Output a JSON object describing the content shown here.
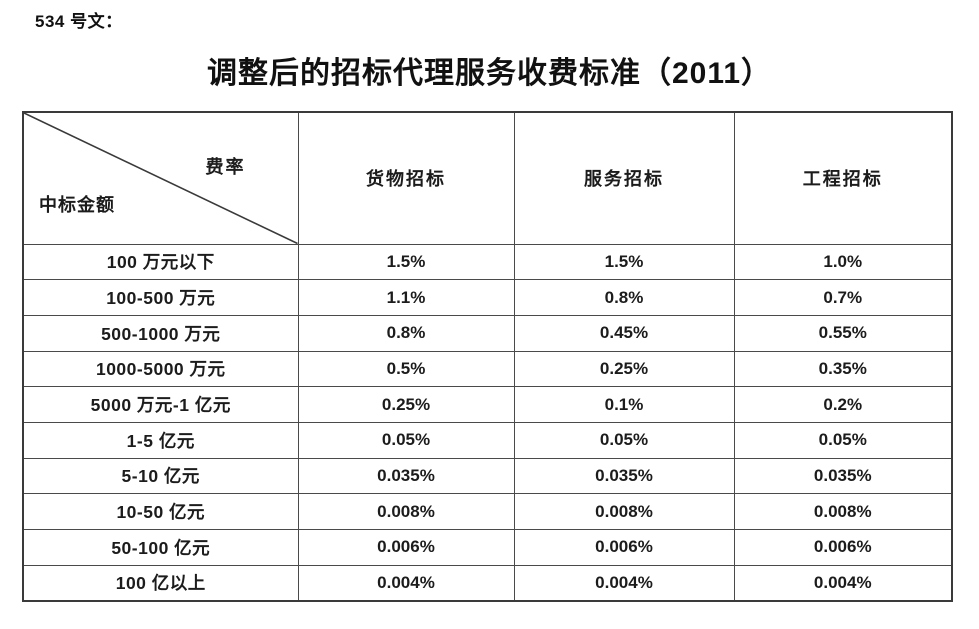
{
  "page": {
    "doc_number": "534 号文：",
    "title": "调整后的招标代理服务收费标准（2011）"
  },
  "table": {
    "corner": {
      "rate_label": "费率",
      "amount_label": "中标金额"
    },
    "columns": [
      "货物招标",
      "服务招标",
      "工程招标"
    ],
    "rows": [
      {
        "range": "100 万元以下",
        "rates": [
          "1.5%",
          "1.5%",
          "1.0%"
        ]
      },
      {
        "range": "100-500 万元",
        "rates": [
          "1.1%",
          "0.8%",
          "0.7%"
        ]
      },
      {
        "range": "500-1000 万元",
        "rates": [
          "0.8%",
          "0.45%",
          "0.55%"
        ]
      },
      {
        "range": "1000-5000 万元",
        "rates": [
          "0.5%",
          "0.25%",
          "0.35%"
        ]
      },
      {
        "range": "5000 万元-1 亿元",
        "rates": [
          "0.25%",
          "0.1%",
          "0.2%"
        ]
      },
      {
        "range": "1-5 亿元",
        "rates": [
          "0.05%",
          "0.05%",
          "0.05%"
        ]
      },
      {
        "range": "5-10 亿元",
        "rates": [
          "0.035%",
          "0.035%",
          "0.035%"
        ]
      },
      {
        "range": "10-50 亿元",
        "rates": [
          "0.008%",
          "0.008%",
          "0.008%"
        ]
      },
      {
        "range": "50-100 亿元",
        "rates": [
          "0.006%",
          "0.006%",
          "0.006%"
        ]
      },
      {
        "range": "100 亿以上",
        "rates": [
          "0.004%",
          "0.004%",
          "0.004%"
        ]
      }
    ]
  },
  "colors": {
    "border_outer": "#3a3a3a",
    "border_inner": "#4a4a4a",
    "text": "#111111",
    "background": "#ffffff"
  }
}
